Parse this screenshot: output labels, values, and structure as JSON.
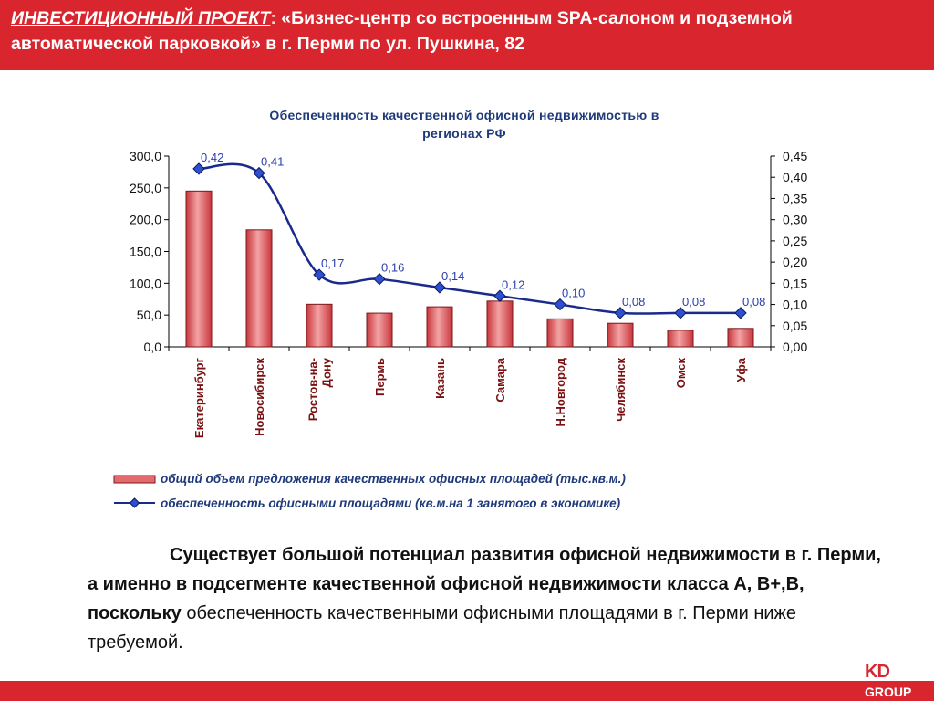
{
  "header": {
    "prefix": "ИНВЕСТИЦИОННЫЙ ПРОЕКТ",
    "colon": ":",
    "title_rest": " «Бизнес-центр со встроенным SPA-салоном и подземной автоматической парковкой» в г. Перми по ул. Пушкина, 82"
  },
  "chart_data": {
    "type": "bar",
    "title_line1": "Обеспеченность качественной офисной недвижимостью в",
    "title_line2": "регионах РФ",
    "categories": [
      "Екатеринбург",
      "Новосибирск",
      "Ростов-на-Дону",
      "Пермь",
      "Казань",
      "Самара",
      "Н.Новгород",
      "Челябинск",
      "Омск",
      "Уфа"
    ],
    "category_labels": [
      [
        "Екатеринбург"
      ],
      [
        "Новосибирск"
      ],
      [
        "Ростов-на-",
        "Дону"
      ],
      [
        "Пермь"
      ],
      [
        "Казань"
      ],
      [
        "Самара"
      ],
      [
        "Н.Новгород"
      ],
      [
        "Челябинск"
      ],
      [
        "Омск"
      ],
      [
        "Уфа"
      ]
    ],
    "series": [
      {
        "name": "общий объем предложения качественных офисных площадей (тыс.кв.м.)",
        "type": "bar",
        "axis": "left",
        "values": [
          245,
          184,
          67,
          53,
          63,
          72,
          44,
          37,
          26,
          29
        ]
      },
      {
        "name": "обеспеченность офисными площадями (кв.м.на 1 занятого в экономике)",
        "type": "line",
        "axis": "right",
        "values": [
          0.42,
          0.41,
          0.17,
          0.16,
          0.14,
          0.12,
          0.1,
          0.08,
          0.08,
          0.08
        ],
        "labels": [
          "0,42",
          "0,41",
          "0,17",
          "0,16",
          "0,14",
          "0,12",
          "0,10",
          "0,08",
          "0,08",
          "0,08"
        ]
      }
    ],
    "y_left": {
      "min": 0,
      "max": 300,
      "ticks": [
        "0,0",
        "50,0",
        "100,0",
        "150,0",
        "200,0",
        "250,0",
        "300,0"
      ]
    },
    "y_right": {
      "min": 0,
      "max": 0.45,
      "ticks": [
        "0,00",
        "0,05",
        "0,10",
        "0,15",
        "0,20",
        "0,25",
        "0,30",
        "0,35",
        "0,40",
        "0,45"
      ]
    },
    "grid": false,
    "legend_position": "bottom",
    "colors": {
      "bar_fill": "#e36a6f",
      "bar_stroke": "#7a1a1a",
      "line": "#1a2a8c",
      "marker": "#2d4fd0"
    }
  },
  "body": {
    "bold_text": "Существует большой потенциал развития офисной недвижимости в г. Перми, а  именно в подсегменте качественной офисной недвижимости класса  А, В+,В, поскольку",
    "normal_text": " обеспеченность качественными офисными площадями в г. Перми ниже требуемой."
  },
  "logo": {
    "kd": "KD",
    "group": "GROUP"
  }
}
